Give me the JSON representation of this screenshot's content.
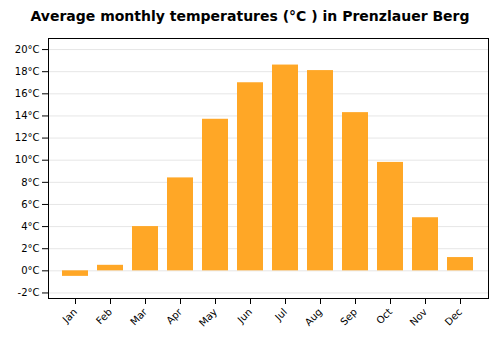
{
  "chart_data": {
    "type": "bar",
    "title": "Average monthly temperatures (°C ) in Prenzlauer Berg",
    "categories": [
      "Jan",
      "Feb",
      "Mar",
      "Apr",
      "May",
      "Jun",
      "Jul",
      "Aug",
      "Sep",
      "Oct",
      "Nov",
      "Dec"
    ],
    "values": [
      -0.5,
      0.5,
      4.0,
      8.4,
      13.7,
      17.0,
      18.6,
      18.1,
      14.3,
      9.8,
      4.8,
      1.2
    ],
    "color": "#FFA726",
    "ylim": [
      -2.5,
      21
    ],
    "yticks": [
      {
        "value": -2,
        "label": "-2°C"
      },
      {
        "value": 0,
        "label": "0°C"
      },
      {
        "value": 2,
        "label": "2°C"
      },
      {
        "value": 4,
        "label": "4°C"
      },
      {
        "value": 6,
        "label": "6°C"
      },
      {
        "value": 8,
        "label": "8°C"
      },
      {
        "value": 10,
        "label": "10°C"
      },
      {
        "value": 12,
        "label": "12°C"
      },
      {
        "value": 14,
        "label": "14°C"
      },
      {
        "value": 16,
        "label": "16°C"
      },
      {
        "value": 18,
        "label": "18°C"
      },
      {
        "value": 20,
        "label": "20°C"
      }
    ],
    "grid": true
  }
}
